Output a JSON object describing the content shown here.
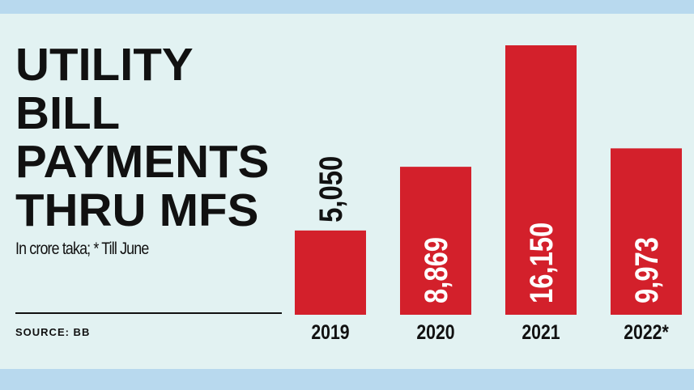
{
  "title_lines": [
    "UTILITY",
    "BILL",
    "PAYMENTS",
    "THRU MFS"
  ],
  "subtitle": "In crore taka; * Till June",
  "source": "SOURCE: BB",
  "colors": {
    "bar": "#d3202b",
    "background": "#e2f2f2",
    "band": "#b8d9ee",
    "text": "#111111"
  },
  "chart_data": {
    "type": "bar",
    "title": "UTILITY BILL PAYMENTS THRU MFS",
    "subtitle": "In crore taka; * Till June",
    "categories": [
      "2019",
      "2020",
      "2021",
      "2022*"
    ],
    "values": [
      5050,
      8869,
      16150,
      9973
    ],
    "value_labels": [
      "5,050",
      "8,869",
      "16,150",
      "9,973"
    ],
    "ylim": [
      0,
      16150
    ],
    "grid": false,
    "axis_y_visible": false
  }
}
